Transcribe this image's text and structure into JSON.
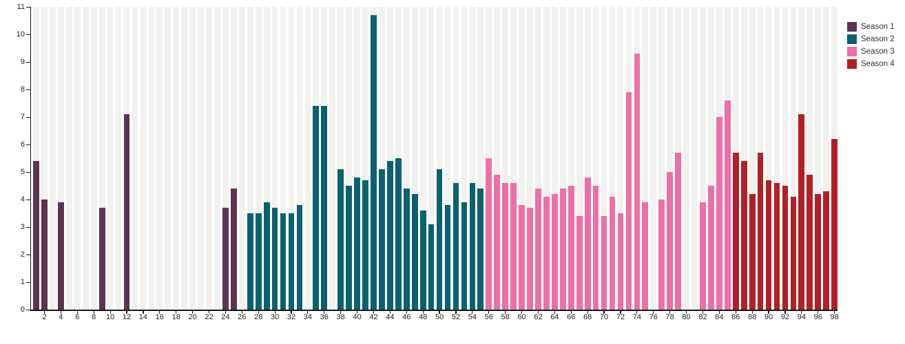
{
  "page": {
    "background_color": "#ffffff",
    "stripe_color": "#f1f1f0",
    "axis_color": "#151515",
    "tick_label_color": "#222222"
  },
  "legend": {
    "position": "top-right",
    "items": [
      {
        "label": "Season 1",
        "color": "#603352"
      },
      {
        "label": "Season 2",
        "color": "#0b6170"
      },
      {
        "label": "Season 3",
        "color": "#ec6fa5"
      },
      {
        "label": "Season 4",
        "color": "#b12026"
      }
    ]
  },
  "chart_data": {
    "type": "bar",
    "title": "",
    "xlabel": "",
    "ylabel": "",
    "x_domain": [
      1,
      98
    ],
    "x_tick_step": 2,
    "ylim": [
      0,
      11
    ],
    "y_tick_step": 1,
    "grid": "vertical-stripes-per-slot",
    "legend_position": "top-right",
    "series": [
      {
        "name": "Season 1",
        "color": "#603352",
        "points": [
          [
            1,
            5.4
          ],
          [
            2,
            4.0
          ],
          [
            4,
            3.9
          ],
          [
            9,
            3.7
          ],
          [
            12,
            7.1
          ],
          [
            24,
            3.7
          ],
          [
            25,
            4.4
          ]
        ]
      },
      {
        "name": "Season 2",
        "color": "#0b6170",
        "points": [
          [
            27,
            3.5
          ],
          [
            28,
            3.5
          ],
          [
            29,
            3.9
          ],
          [
            30,
            3.7
          ],
          [
            31,
            3.5
          ],
          [
            32,
            3.5
          ],
          [
            33,
            3.8
          ],
          [
            35,
            7.4
          ],
          [
            36,
            7.4
          ],
          [
            38,
            5.1
          ],
          [
            39,
            4.5
          ],
          [
            40,
            4.8
          ],
          [
            41,
            4.7
          ],
          [
            42,
            10.7
          ],
          [
            43,
            5.1
          ],
          [
            44,
            5.4
          ],
          [
            45,
            5.5
          ],
          [
            46,
            4.4
          ],
          [
            47,
            4.2
          ],
          [
            48,
            3.6
          ],
          [
            49,
            3.1
          ],
          [
            50,
            5.1
          ],
          [
            51,
            3.8
          ],
          [
            52,
            4.6
          ],
          [
            53,
            3.9
          ],
          [
            54,
            4.6
          ],
          [
            55,
            4.4
          ]
        ]
      },
      {
        "name": "Season 3",
        "color": "#ec6fa5",
        "points": [
          [
            56,
            5.5
          ],
          [
            57,
            4.9
          ],
          [
            58,
            4.6
          ],
          [
            59,
            4.6
          ],
          [
            60,
            3.8
          ],
          [
            61,
            3.7
          ],
          [
            62,
            4.4
          ],
          [
            63,
            4.1
          ],
          [
            64,
            4.2
          ],
          [
            65,
            4.4
          ],
          [
            66,
            4.5
          ],
          [
            67,
            3.4
          ],
          [
            68,
            4.8
          ],
          [
            69,
            4.5
          ],
          [
            70,
            3.4
          ],
          [
            71,
            4.1
          ],
          [
            72,
            3.5
          ],
          [
            73,
            7.9
          ],
          [
            74,
            9.3
          ],
          [
            75,
            3.9
          ],
          [
            77,
            4.0
          ],
          [
            78,
            5.0
          ],
          [
            79,
            5.7
          ],
          [
            82,
            3.9
          ],
          [
            83,
            4.5
          ],
          [
            84,
            7.0
          ],
          [
            85,
            7.6
          ]
        ]
      },
      {
        "name": "Season 4",
        "color": "#b12026",
        "points": [
          [
            86,
            5.7
          ],
          [
            87,
            5.4
          ],
          [
            88,
            4.2
          ],
          [
            89,
            5.7
          ],
          [
            90,
            4.7
          ],
          [
            91,
            4.6
          ],
          [
            92,
            4.5
          ],
          [
            93,
            4.1
          ],
          [
            94,
            7.1
          ],
          [
            95,
            4.9
          ],
          [
            96,
            4.2
          ],
          [
            97,
            4.3
          ],
          [
            98,
            6.2
          ]
        ]
      }
    ]
  }
}
